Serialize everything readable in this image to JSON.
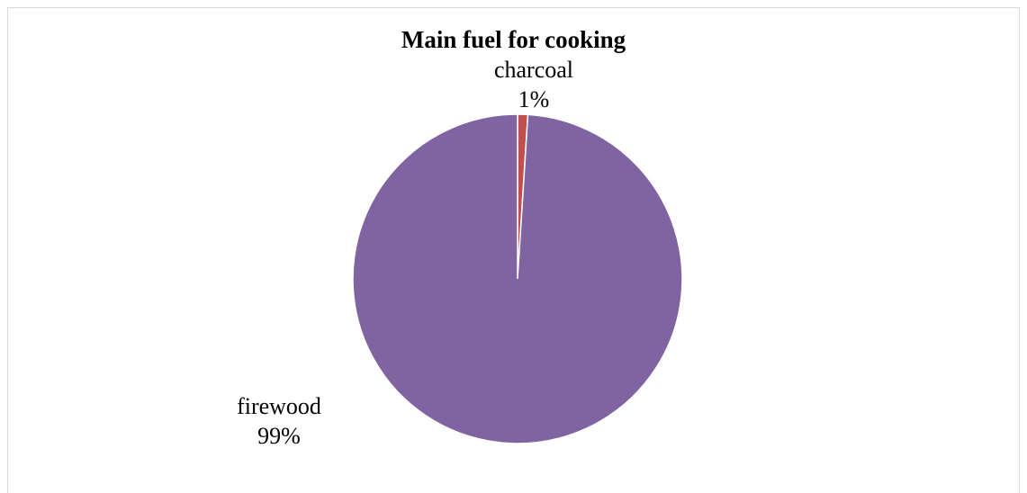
{
  "chart_data": {
    "type": "pie",
    "title": "Main fuel for cooking",
    "categories": [
      "charcoal",
      "firewood"
    ],
    "values": [
      1,
      99
    ],
    "value_labels": [
      "1%",
      "99%"
    ],
    "colors": [
      "#c0504d",
      "#8064a2"
    ],
    "legend": "none",
    "grid": false
  }
}
